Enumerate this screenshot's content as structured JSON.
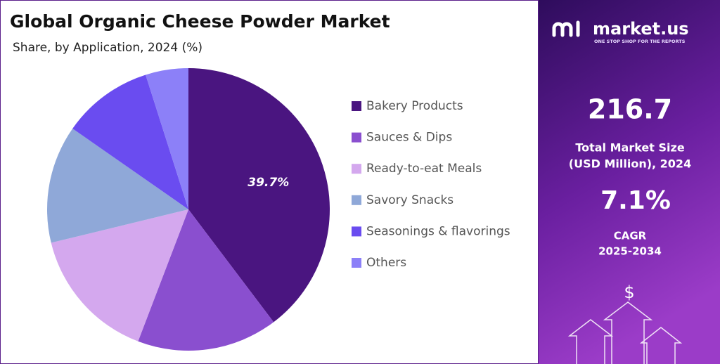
{
  "chart_data": {
    "type": "pie",
    "title": "Global Organic Cheese Powder Market",
    "subtitle": "Share, by Application, 2024 (%)",
    "categories": [
      "Bakery Products",
      "Sauces & Dips",
      "Ready-to-eat Meals",
      "Savory Snacks",
      "Seasonings & flavorings",
      "Others"
    ],
    "values": [
      39.7,
      16.1,
      15.4,
      13.5,
      10.4,
      4.9
    ],
    "value_labels": [
      "39.7%",
      null,
      null,
      null,
      null,
      null
    ],
    "colors": [
      "#4a1580",
      "#8a4fcf",
      "#d4a8ee",
      "#8fa8d8",
      "#6a4cf0",
      "#8c80f8"
    ],
    "legend": "right"
  },
  "panel": {
    "brand": "market.us",
    "tagline": "ONE STOP SHOP FOR THE REPORTS",
    "market_size": "216.7",
    "market_size_label_1": "Total Market Size",
    "market_size_label_2": "(USD Million), 2024",
    "cagr": "7.1%",
    "cagr_label_1": "CAGR",
    "cagr_label_2": "2025-2034",
    "currency_symbol": "$"
  }
}
